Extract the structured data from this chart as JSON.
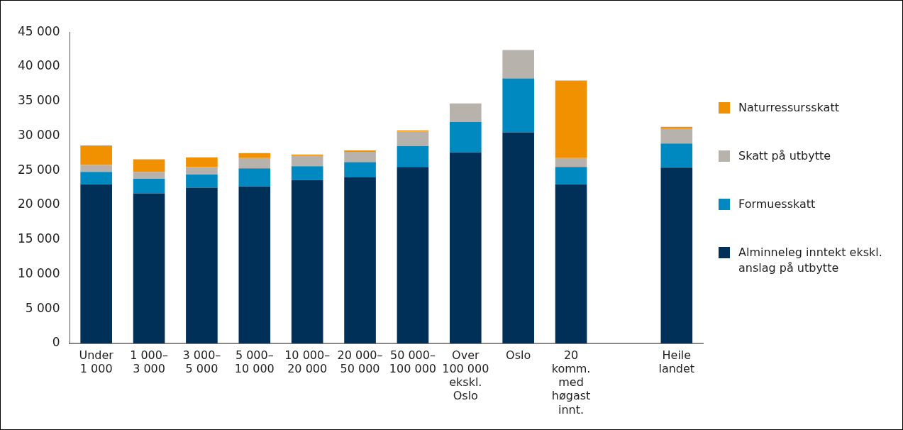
{
  "chart_data": {
    "type": "bar",
    "stacked": true,
    "legend": "right",
    "grid": false,
    "categories": [
      "Under 1 000",
      "1 000–3 000",
      "3 000–5 000",
      "5 000–10 000",
      "10 000–20 000",
      "20 000–50 000",
      "50 000–100 000",
      "Over 100 000 ekskl. Oslo",
      "Oslo",
      "20 komm. med høgast innt.",
      null,
      "Heile landet"
    ],
    "series": [
      {
        "name": "Alminneleg inntekt ekskl. anslag på utbytte",
        "color": "#003057",
        "values": [
          23000,
          21700,
          22500,
          22700,
          23600,
          24000,
          25500,
          27600,
          30500,
          23000,
          null,
          25400
        ]
      },
      {
        "name": "Formuesskatt",
        "color": "#0088c0",
        "values": [
          1800,
          2100,
          1900,
          2600,
          2000,
          2200,
          3000,
          4400,
          7800,
          2500,
          null,
          3500
        ]
      },
      {
        "name": "Skatt på utbytte",
        "color": "#b8b2ad",
        "values": [
          1000,
          1000,
          1100,
          1500,
          1500,
          1500,
          2100,
          2700,
          4100,
          1300,
          null,
          2100
        ]
      },
      {
        "name": "Naturressursskatt",
        "color": "#f29100",
        "values": [
          2800,
          1800,
          1400,
          700,
          200,
          200,
          200,
          0,
          0,
          11200,
          null,
          300
        ]
      }
    ],
    "ylim": [
      0,
      45000
    ],
    "yticks": [
      {
        "value": 0,
        "label": "0"
      },
      {
        "value": 5000,
        "label": "5 000"
      },
      {
        "value": 10000,
        "label": "10 000"
      },
      {
        "value": 15000,
        "label": "15 000"
      },
      {
        "value": 20000,
        "label": "20 000"
      },
      {
        "value": 25000,
        "label": "25 000"
      },
      {
        "value": 30000,
        "label": "30 000"
      },
      {
        "value": 35000,
        "label": "35 000"
      },
      {
        "value": 40000,
        "label": "40 000"
      },
      {
        "value": 45000,
        "label": "45 000"
      }
    ]
  }
}
